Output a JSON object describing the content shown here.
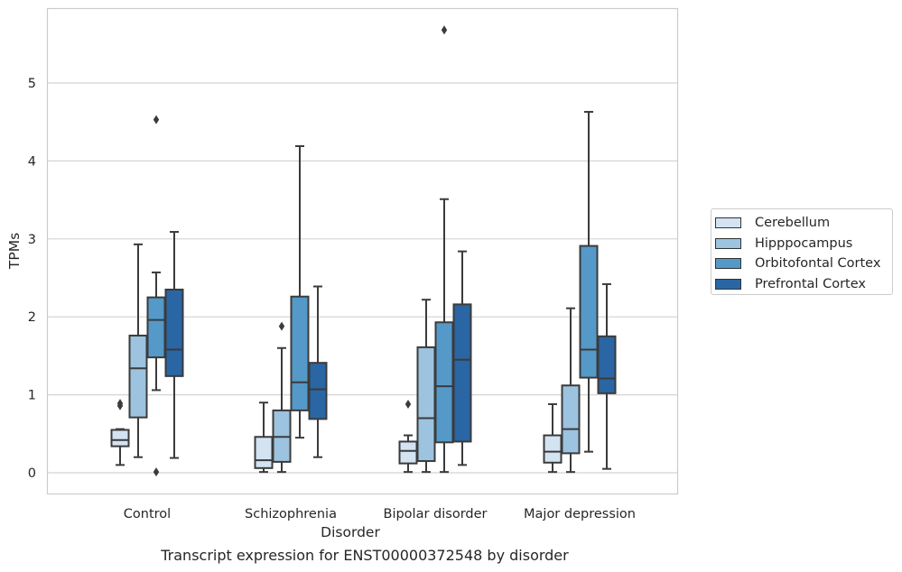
{
  "chart_data": {
    "type": "boxplot",
    "title": "",
    "xlabel": "Disorder",
    "ylabel": "TPMs",
    "ylim": [
      -0.27,
      5.95
    ],
    "yticks": [
      "0",
      "1",
      "2",
      "3",
      "4",
      "5"
    ],
    "grid": true,
    "legend_position": "right",
    "categories": [
      "Control",
      "Schizophrenia",
      "Bipolar disorder",
      "Major depression"
    ],
    "series": [
      {
        "name": "Cerebellum",
        "color": "#d3e3f2",
        "boxes": [
          {
            "whisker_low": 0.1,
            "q1": 0.34,
            "median": 0.42,
            "q3": 0.55,
            "whisker_high": 0.56,
            "outliers": [
              0.86,
              0.89
            ]
          },
          {
            "whisker_low": 0.01,
            "q1": 0.06,
            "median": 0.16,
            "q3": 0.46,
            "whisker_high": 0.9,
            "outliers": []
          },
          {
            "whisker_low": 0.01,
            "q1": 0.12,
            "median": 0.28,
            "q3": 0.4,
            "whisker_high": 0.48,
            "outliers": [
              0.88
            ]
          },
          {
            "whisker_low": 0.01,
            "q1": 0.13,
            "median": 0.27,
            "q3": 0.48,
            "whisker_high": 0.88,
            "outliers": []
          }
        ]
      },
      {
        "name": "Hipppocampus",
        "color": "#9cc3df",
        "boxes": [
          {
            "whisker_low": 0.2,
            "q1": 0.71,
            "median": 1.34,
            "q3": 1.76,
            "whisker_high": 2.93,
            "outliers": []
          },
          {
            "whisker_low": 0.01,
            "q1": 0.14,
            "median": 0.46,
            "q3": 0.8,
            "whisker_high": 1.6,
            "outliers": [
              1.88
            ]
          },
          {
            "whisker_low": 0.01,
            "q1": 0.15,
            "median": 0.7,
            "q3": 1.61,
            "whisker_high": 2.22,
            "outliers": []
          },
          {
            "whisker_low": 0.01,
            "q1": 0.25,
            "median": 0.56,
            "q3": 1.12,
            "whisker_high": 2.11,
            "outliers": []
          }
        ]
      },
      {
        "name": "Orbitofontal Cortex",
        "color": "#5499c8",
        "boxes": [
          {
            "whisker_low": 1.06,
            "q1": 1.48,
            "median": 1.96,
            "q3": 2.25,
            "whisker_high": 2.57,
            "outliers": [
              4.53,
              0.01
            ]
          },
          {
            "whisker_low": 0.45,
            "q1": 0.8,
            "median": 1.16,
            "q3": 2.26,
            "whisker_high": 4.19,
            "outliers": []
          },
          {
            "whisker_low": 0.01,
            "q1": 0.39,
            "median": 1.11,
            "q3": 1.93,
            "whisker_high": 3.51,
            "outliers": [
              5.68
            ]
          },
          {
            "whisker_low": 0.27,
            "q1": 1.22,
            "median": 1.58,
            "q3": 2.91,
            "whisker_high": 4.63,
            "outliers": []
          }
        ]
      },
      {
        "name": "Prefrontal Cortex",
        "color": "#2a66a3",
        "boxes": [
          {
            "whisker_low": 0.19,
            "q1": 1.24,
            "median": 1.58,
            "q3": 2.35,
            "whisker_high": 3.09,
            "outliers": []
          },
          {
            "whisker_low": 0.2,
            "q1": 0.69,
            "median": 1.07,
            "q3": 1.41,
            "whisker_high": 2.39,
            "outliers": []
          },
          {
            "whisker_low": 0.1,
            "q1": 0.4,
            "median": 1.45,
            "q3": 2.16,
            "whisker_high": 2.84,
            "outliers": []
          },
          {
            "whisker_low": 0.05,
            "q1": 1.02,
            "median": 1.21,
            "q3": 1.75,
            "whisker_high": 2.42,
            "outliers": []
          }
        ]
      }
    ]
  },
  "caption": "Transcript expression for ENST00000372548 by disorder"
}
